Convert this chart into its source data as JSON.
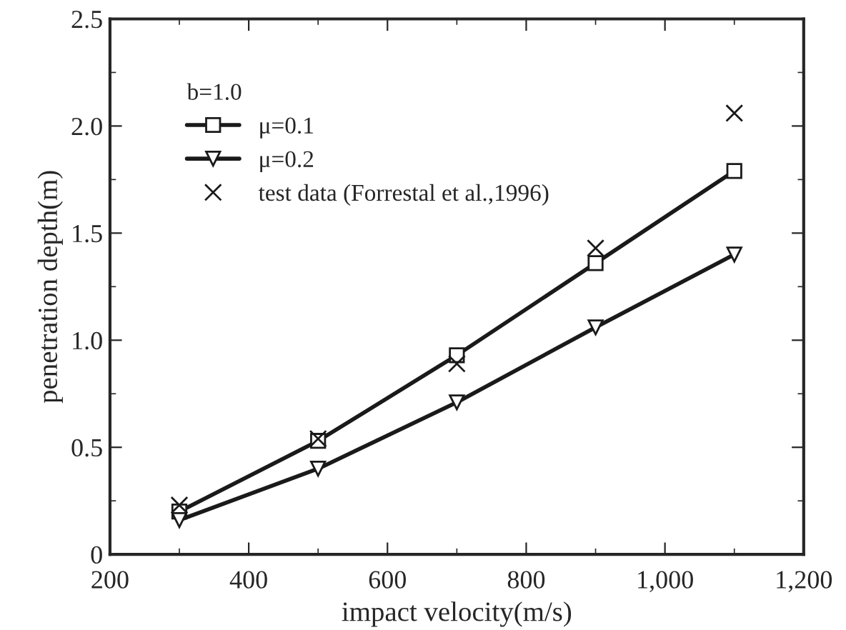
{
  "chart_data": {
    "type": "line",
    "xlabel": "impact velocity(m/s)",
    "ylabel": "penetration depth(m)",
    "legend_title": "b=1.0",
    "legend": "top left",
    "grid": false,
    "xlim": [
      200,
      1200
    ],
    "xticks": [
      200,
      400,
      600,
      800,
      {
        "value": 1000,
        "label": "1,000"
      },
      {
        "value": 1200,
        "label": "1,200"
      }
    ],
    "ylim": [
      0,
      2.5
    ],
    "yticks": [
      {
        "value": 0,
        "label": "0"
      },
      {
        "value": 0.5,
        "label": "0.5"
      },
      {
        "value": 1,
        "label": "1.0"
      },
      {
        "value": 1.5,
        "label": "1.5"
      },
      {
        "value": 2,
        "label": "2.0"
      },
      {
        "value": 2.5,
        "label": "2.5"
      }
    ],
    "x": [
      300,
      500,
      700,
      900,
      1100
    ],
    "series": [
      {
        "name": "μ=0.1",
        "color": "#1a1a1a",
        "marker": "square",
        "line_style": "solid",
        "values": [
          0.2,
          0.53,
          0.93,
          1.36,
          1.79
        ]
      },
      {
        "name": "μ=0.2",
        "color": "#1a1a1a",
        "marker": "triangle",
        "line_style": "solid",
        "values": [
          0.16,
          0.4,
          0.71,
          1.06,
          1.4
        ]
      },
      {
        "name": "test data (Forrestal et al.,1996)",
        "type": "scatter",
        "color": "#1a1a1a",
        "marker": "cross",
        "values": [
          0.23,
          0.54,
          0.89,
          1.43,
          2.06
        ]
      }
    ]
  }
}
